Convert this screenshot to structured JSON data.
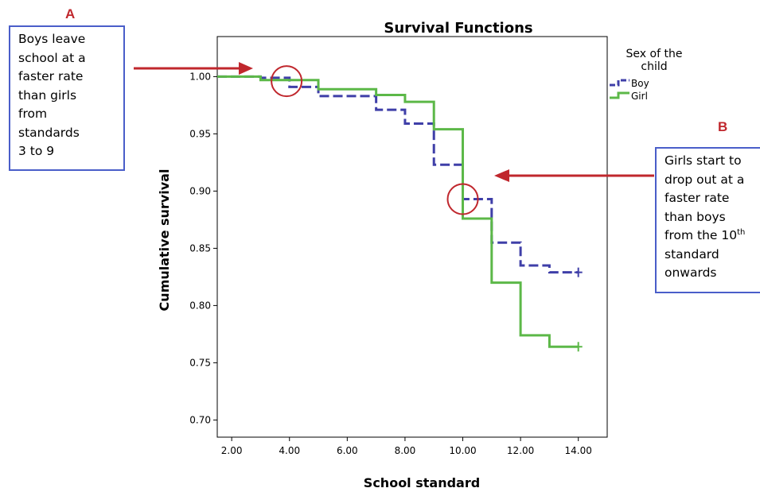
{
  "chart_data": {
    "type": "line",
    "subtype": "step",
    "title": "Survival Functions",
    "xlabel": "School standard",
    "ylabel": "Cumulative survival",
    "xlim": [
      1.5,
      15.0
    ],
    "ylim": [
      0.685,
      1.035
    ],
    "x_ticks": [
      2,
      4,
      6,
      8,
      10,
      12,
      14
    ],
    "x_tick_labels": [
      "2.00",
      "4.00",
      "6.00",
      "8.00",
      "10.00",
      "12.00",
      "14.00"
    ],
    "y_ticks": [
      0.7,
      0.75,
      0.8,
      0.85,
      0.9,
      0.95,
      1.0
    ],
    "y_tick_labels": [
      "0.70",
      "0.75",
      "0.80",
      "0.85",
      "0.90",
      "0.95",
      "1.00"
    ],
    "grid": false,
    "legend": {
      "title_line1": "Sex of the",
      "title_line2": "child",
      "position": "right"
    },
    "series": [
      {
        "name": "Boy",
        "color": "#3f3fa8",
        "style": "dashed",
        "censor_end": true,
        "x": [
          1.5,
          3,
          4,
          5,
          7,
          8,
          9,
          10,
          11,
          12,
          13,
          14
        ],
        "y": [
          1.0,
          0.999,
          0.991,
          0.983,
          0.971,
          0.959,
          0.923,
          0.893,
          0.855,
          0.835,
          0.829,
          0.829
        ]
      },
      {
        "name": "Girl",
        "color": "#5cb848",
        "style": "solid",
        "censor_end": true,
        "x": [
          1.5,
          3,
          5,
          7,
          8,
          9,
          10,
          11,
          12,
          13,
          14
        ],
        "y": [
          1.0,
          0.997,
          0.989,
          0.984,
          0.978,
          0.954,
          0.876,
          0.82,
          0.774,
          0.764,
          0.764
        ]
      }
    ],
    "highlight_circles": [
      {
        "x": 3.9,
        "y": 0.996
      },
      {
        "x": 10.0,
        "y": 0.893
      }
    ]
  },
  "annotations": {
    "a": {
      "letter": "A",
      "lines": [
        "Boys leave",
        "school at a",
        "faster rate",
        "than girls",
        "from",
        "standards",
        "3 to 9"
      ]
    },
    "b": {
      "letter": "B",
      "lines": [
        "Girls start to",
        "drop out at a",
        "faster rate",
        "than boys"
      ],
      "line5_text": "from the 10",
      "line5_sup": "th",
      "lines_after": [
        "standard",
        "onwards"
      ]
    }
  },
  "colors": {
    "arrow": "#c0272d",
    "circle": "#c0272d",
    "box_border": "#4a5ec9"
  }
}
